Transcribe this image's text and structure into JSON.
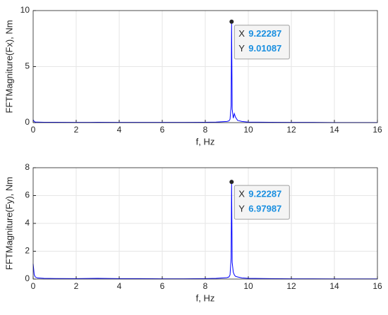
{
  "chart_data": [
    {
      "type": "line",
      "xlabel": "f, Hz",
      "ylabel": "FFTMagniture(Fx), Nm",
      "x": [
        0,
        0.05,
        0.1,
        0.2,
        0.5,
        1,
        2,
        3,
        4,
        5,
        6,
        7,
        8,
        8.5,
        9,
        9.1,
        9.15,
        9.2,
        9.22287,
        9.25,
        9.3,
        9.35,
        9.4,
        9.5,
        9.7,
        10,
        11,
        12,
        13,
        14,
        15,
        16
      ],
      "series": [
        {
          "name": "Fx",
          "color": "#0000ff",
          "values": [
            0.25,
            0.1,
            0.05,
            0.05,
            0.03,
            0.03,
            0.02,
            0.03,
            0.02,
            0.02,
            0.02,
            0.02,
            0.03,
            0.05,
            0.1,
            0.15,
            0.3,
            1.5,
            9.01087,
            1.2,
            0.4,
            0.8,
            0.5,
            0.2,
            0.1,
            0.05,
            0.03,
            0.02,
            0.02,
            0.01,
            0.01,
            0.01
          ]
        }
      ],
      "xlim": [
        0,
        16
      ],
      "xticks": [
        0,
        2,
        4,
        6,
        8,
        10,
        12,
        14,
        16
      ],
      "ylim": [
        0,
        10
      ],
      "yticks": [
        0,
        5,
        10
      ],
      "grid": true,
      "datatip": {
        "x_label": "X",
        "x": 9.22287,
        "y_label": "Y",
        "y": 9.01087
      }
    },
    {
      "type": "line",
      "xlabel": "f, Hz",
      "ylabel": "FFTMagniture(Fy), Nm",
      "x": [
        0,
        0.05,
        0.1,
        0.2,
        0.5,
        1,
        2,
        3,
        4,
        5,
        6,
        7,
        8,
        8.5,
        9,
        9.1,
        9.15,
        9.2,
        9.22287,
        9.25,
        9.3,
        9.35,
        9.4,
        9.5,
        9.7,
        10,
        11,
        12,
        13,
        14,
        15,
        16
      ],
      "series": [
        {
          "name": "Fy",
          "color": "#0000ff",
          "values": [
            1.1,
            0.3,
            0.15,
            0.08,
            0.05,
            0.04,
            0.03,
            0.05,
            0.03,
            0.03,
            0.02,
            0.02,
            0.03,
            0.05,
            0.1,
            0.15,
            0.3,
            1.5,
            6.97987,
            1.2,
            0.5,
            0.3,
            0.2,
            0.15,
            0.08,
            0.05,
            0.03,
            0.02,
            0.02,
            0.01,
            0.01,
            0.01
          ]
        }
      ],
      "xlim": [
        0,
        16
      ],
      "xticks": [
        0,
        2,
        4,
        6,
        8,
        10,
        12,
        14,
        16
      ],
      "ylim": [
        0,
        8
      ],
      "yticks": [
        0,
        2,
        4,
        6,
        8
      ],
      "grid": true,
      "datatip": {
        "x_label": "X",
        "x": 9.22287,
        "y_label": "Y",
        "y": 6.97987
      }
    }
  ]
}
